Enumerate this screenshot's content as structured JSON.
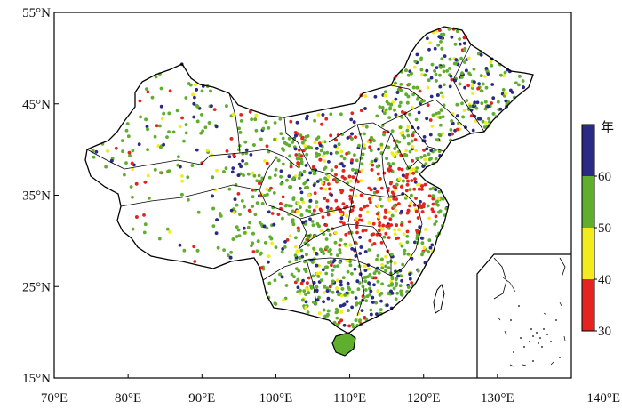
{
  "chart_data": {
    "type": "scatter",
    "x_ticks": [
      "70°E",
      "80°E",
      "90°E",
      "100°E",
      "110°E",
      "120°E",
      "130°E",
      "140°E"
    ],
    "y_ticks": [
      "55°N",
      "45°N",
      "35°N",
      "25°N",
      "15°N"
    ],
    "lon_range": [
      70,
      140
    ],
    "lat_range": [
      15,
      55
    ],
    "colorbar": {
      "title": "年",
      "labels": [
        "60",
        "50",
        "40",
        "30"
      ],
      "colors": [
        "#2a2a86",
        "#5fae2e",
        "#f2ec1e",
        "#e5241f"
      ],
      "bounds": [
        30,
        40,
        50,
        60,
        70
      ]
    },
    "colors": {
      "blue": "#2a2a86",
      "green": "#5fae2e",
      "yellow": "#f2ec1e",
      "red": "#e5241f"
    }
  }
}
